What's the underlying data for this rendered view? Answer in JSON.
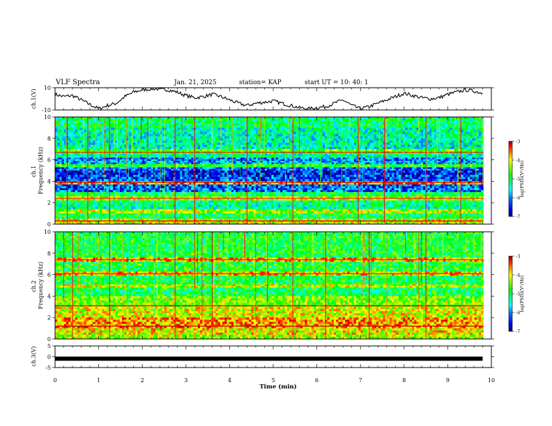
{
  "header": {
    "title": "VLF Spectra",
    "date": "Jan. 21, 2025",
    "station": "station= KAP",
    "start": "start  UT  =   10: 40: 1"
  },
  "colors": {
    "spectrum": [
      "#00007f",
      "#0000ff",
      "#007fff",
      "#00ffff",
      "#00ff7f",
      "#00ff00",
      "#7fff00",
      "#ffff00",
      "#ff7f00",
      "#ff0000",
      "#7f0000"
    ],
    "trace": "#000000",
    "frame": "#000000"
  },
  "chart_data": [
    {
      "id": "ch1v",
      "type": "line",
      "ylabel": "ch.1(V)",
      "ylim": [
        -10,
        10
      ],
      "yticks": [
        10,
        -10
      ],
      "x": [
        0.0,
        0.2,
        0.4,
        0.6,
        0.8,
        1.0,
        1.2,
        1.4,
        1.6,
        1.8,
        2.0,
        2.2,
        2.4,
        2.6,
        2.8,
        3.0,
        3.2,
        3.4,
        3.6,
        3.8,
        4.0,
        4.2,
        4.4,
        4.6,
        4.8,
        5.0,
        5.2,
        5.4,
        5.6,
        5.8,
        6.0,
        6.2,
        6.4,
        6.6,
        6.8,
        7.0,
        7.2,
        7.4,
        7.6,
        7.8,
        8.0,
        8.2,
        8.4,
        8.6,
        8.8,
        9.0,
        9.2,
        9.4,
        9.6,
        9.8
      ],
      "y": [
        4,
        2,
        3,
        -1,
        -5,
        -9,
        -6,
        -4,
        2,
        6,
        8,
        9,
        9,
        8,
        6,
        3,
        1,
        2,
        4,
        2,
        -1,
        -4,
        -6,
        -4,
        -3,
        -2,
        -4,
        -6,
        -8,
        -9,
        -8,
        -7,
        -4,
        -1,
        -6,
        -9,
        -7,
        -4,
        -1,
        2,
        5,
        3,
        1,
        0,
        1,
        4,
        6,
        8,
        7,
        5
      ]
    },
    {
      "id": "ch1",
      "type": "heatmap",
      "ylabel": "ch.1\nFrequency (kHz)",
      "ylim": [
        0,
        10
      ],
      "yticks": [
        0,
        2,
        4,
        6,
        8,
        10
      ],
      "colorbar": {
        "label": "log(PSD)(V²/Hz)",
        "ticks": [
          -3,
          -4,
          -5,
          -6,
          -7
        ],
        "range": [
          -7,
          -3
        ]
      },
      "bands": [
        {
          "f": [
            9.0,
            10.0
          ],
          "v": -5.3
        },
        {
          "f": [
            7.0,
            9.0
          ],
          "v": -5.6
        },
        {
          "f": [
            6.6,
            7.0
          ],
          "v": -4.8
        },
        {
          "f": [
            6.2,
            6.6
          ],
          "v": -5.5
        },
        {
          "f": [
            5.9,
            6.2
          ],
          "v": -6.2
        },
        {
          "f": [
            5.6,
            5.9
          ],
          "v": -6.0
        },
        {
          "f": [
            5.3,
            5.6
          ],
          "v": -5.0
        },
        {
          "f": [
            5.0,
            5.3
          ],
          "v": -6.3
        },
        {
          "f": [
            4.6,
            5.0
          ],
          "v": -6.6
        },
        {
          "f": [
            4.0,
            4.6
          ],
          "v": -6.4
        },
        {
          "f": [
            3.7,
            4.0
          ],
          "v": -3.8
        },
        {
          "f": [
            3.0,
            3.7
          ],
          "v": -6.3
        },
        {
          "f": [
            2.6,
            3.0
          ],
          "v": -5.2
        },
        {
          "f": [
            2.2,
            2.6
          ],
          "v": -4.4
        },
        {
          "f": [
            1.8,
            2.2
          ],
          "v": -5.4
        },
        {
          "f": [
            1.4,
            1.8
          ],
          "v": -5.5
        },
        {
          "f": [
            1.0,
            1.4
          ],
          "v": -4.5
        },
        {
          "f": [
            0.5,
            1.0
          ],
          "v": -5.2
        },
        {
          "f": [
            0.0,
            0.5
          ],
          "v": -4.3
        }
      ],
      "lines": [
        {
          "f": 6.7,
          "v": -3.3
        },
        {
          "f": 3.9,
          "v": -3.2
        },
        {
          "f": 2.4,
          "v": -3.5
        },
        {
          "f": 0.3,
          "v": -3.3
        }
      ],
      "spikes": [
        1.25,
        2.75,
        0.28,
        0.75,
        3.2,
        4.4,
        5.45,
        6.95,
        7.55,
        8.5,
        9.3
      ]
    },
    {
      "id": "ch2",
      "type": "heatmap",
      "ylabel": "ch.2\nFrequency (kHz)",
      "ylim": [
        0,
        10
      ],
      "yticks": [
        0,
        2,
        4,
        6,
        8,
        10
      ],
      "colorbar": {
        "label": "log(PSD)(V²/Hz)",
        "ticks": [
          -3,
          -4,
          -5,
          -6,
          -7
        ],
        "range": [
          -7,
          -3
        ]
      },
      "bands": [
        {
          "f": [
            7.6,
            10.0
          ],
          "v": -5.1
        },
        {
          "f": [
            7.2,
            7.6
          ],
          "v": -4.0
        },
        {
          "f": [
            6.3,
            7.2
          ],
          "v": -5.1
        },
        {
          "f": [
            5.9,
            6.3
          ],
          "v": -4.1
        },
        {
          "f": [
            5.1,
            5.9
          ],
          "v": -5.2
        },
        {
          "f": [
            4.8,
            5.1
          ],
          "v": -4.4
        },
        {
          "f": [
            4.0,
            4.8
          ],
          "v": -5.2
        },
        {
          "f": [
            3.0,
            4.0
          ],
          "v": -4.6
        },
        {
          "f": [
            2.0,
            3.0
          ],
          "v": -4.3
        },
        {
          "f": [
            1.0,
            2.0
          ],
          "v": -3.9
        },
        {
          "f": [
            0.4,
            1.0
          ],
          "v": -4.2
        },
        {
          "f": [
            0.0,
            0.4
          ],
          "v": -4.5
        }
      ],
      "lines": [
        {
          "f": 7.4,
          "v": -3.4
        },
        {
          "f": 6.1,
          "v": -3.4
        },
        {
          "f": 3.1,
          "v": -3.3
        },
        {
          "f": 1.2,
          "v": -3.2
        }
      ],
      "spikes": [
        0.4,
        1.25,
        2.75,
        3.6,
        5.45,
        6.2,
        7.2,
        8.5
      ]
    },
    {
      "id": "ch3v",
      "type": "line",
      "ylabel": "ch.3(V)",
      "ylim": [
        -5,
        5
      ],
      "yticks": [
        5,
        0,
        -5
      ],
      "x": [
        0,
        9.8
      ],
      "y": [
        -0.9,
        -0.9
      ]
    }
  ],
  "xaxis": {
    "label": "Time (min)",
    "range": [
      0,
      10
    ],
    "ticks": [
      "0",
      "1",
      "2",
      "3",
      "4",
      "5",
      "6",
      "7",
      "8",
      "9",
      "10"
    ],
    "data_end": 9.82
  }
}
